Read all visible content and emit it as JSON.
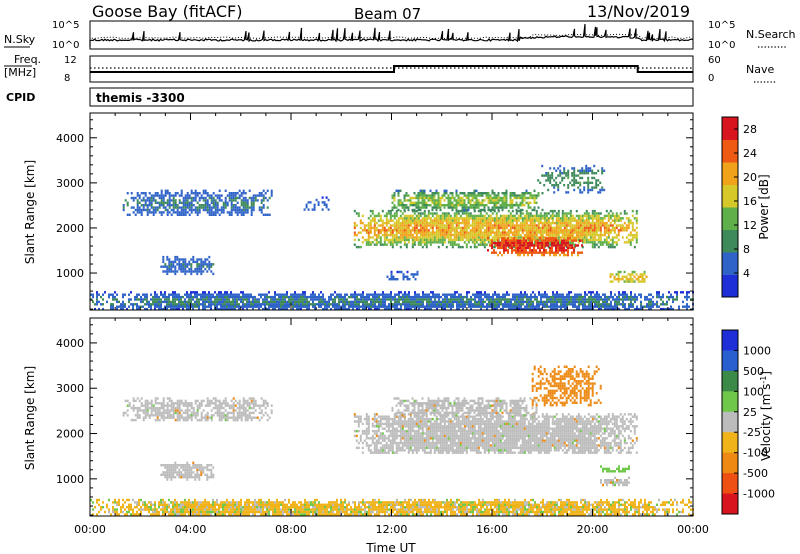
{
  "header": {
    "station": "Goose Bay (fitACF)",
    "beam": "Beam 07",
    "date": "13/Nov/2019"
  },
  "noise_panel": {
    "left_label": "N.Sky",
    "right_label": "N.Search",
    "left_ticks": [
      "10^5",
      "10^0"
    ],
    "right_ticks": [
      "10^5",
      "10^0"
    ]
  },
  "freq_panel": {
    "left_label_line1": "Freq.",
    "left_label_line2": "[MHz]",
    "right_label": "Nave",
    "left_ticks": [
      "12",
      "8"
    ],
    "right_ticks": [
      "60",
      "0"
    ]
  },
  "cpid": {
    "label": "CPID",
    "value": "themis -3300"
  },
  "colors": {
    "power": [
      "#1f2fd8",
      "#2f63c8",
      "#3f8a5a",
      "#5fb04a",
      "#d6c829",
      "#f0a21a",
      "#ee5a14",
      "#d8141e"
    ],
    "velocity": [
      "#1f2fd8",
      "#2a5fd0",
      "#3c8a48",
      "#6fc84a",
      "#bcbcbc",
      "#f0b41a",
      "#ee8a14",
      "#ee5014",
      "#d8141e"
    ],
    "ground_scatter": "#bcbcbc"
  },
  "chart_data": [
    {
      "type": "heatmap",
      "name": "power-panel",
      "ylabel": "Slant Range [km]",
      "xlabel": "",
      "x_ticks": [
        "00:00",
        "04:00",
        "08:00",
        "12:00",
        "16:00",
        "20:00",
        "00:00"
      ],
      "xlim_hours": [
        0,
        24
      ],
      "ylim_km": [
        180,
        4550
      ],
      "y_ticks": [
        1000,
        2000,
        3000,
        4000
      ],
      "colorbar": {
        "label": "Power [dB]",
        "ticks": [
          4,
          8,
          12,
          16,
          20,
          24,
          28
        ],
        "range": [
          0,
          30
        ]
      },
      "regions": [
        {
          "t0": 1.3,
          "t1": 7.2,
          "r0": 2280,
          "r1": 2850,
          "v0": 3,
          "v1": 9,
          "density": 0.75
        },
        {
          "t0": 2.8,
          "t1": 4.9,
          "r0": 1000,
          "r1": 1380,
          "v0": 3,
          "v1": 8,
          "density": 0.8
        },
        {
          "t0": 8.5,
          "t1": 9.5,
          "r0": 2400,
          "r1": 2700,
          "v0": 3,
          "v1": 6,
          "density": 0.4
        },
        {
          "t0": 10.5,
          "t1": 21.8,
          "r0": 1600,
          "r1": 2400,
          "v0": 6,
          "v1": 24,
          "density": 0.92
        },
        {
          "t0": 12.0,
          "t1": 18.0,
          "r0": 2400,
          "r1": 2850,
          "v0": 4,
          "v1": 18,
          "density": 0.78
        },
        {
          "t0": 17.8,
          "t1": 20.5,
          "r0": 2800,
          "r1": 3400,
          "v0": 3,
          "v1": 12,
          "density": 0.5
        },
        {
          "t0": 15.8,
          "t1": 19.6,
          "r0": 1400,
          "r1": 1850,
          "v0": 18,
          "v1": 30,
          "density": 0.8
        },
        {
          "t0": 20.6,
          "t1": 22.2,
          "r0": 800,
          "r1": 1050,
          "v0": 10,
          "v1": 22,
          "density": 0.7
        },
        {
          "t0": 11.8,
          "t1": 13.0,
          "r0": 850,
          "r1": 1050,
          "v0": 3,
          "v1": 6,
          "density": 0.5
        },
        {
          "t0": 0.0,
          "t1": 24.0,
          "r0": 190,
          "r1": 600,
          "v0": 1,
          "v1": 10,
          "density": 0.9
        }
      ]
    },
    {
      "type": "heatmap",
      "name": "velocity-panel",
      "ylabel": "Slant Range [km]",
      "xlabel": "Time UT",
      "x_ticks": [
        "00:00",
        "04:00",
        "08:00",
        "12:00",
        "16:00",
        "20:00",
        "00:00"
      ],
      "xlim_hours": [
        0,
        24
      ],
      "ylim_km": [
        180,
        4550
      ],
      "y_ticks": [
        1000,
        2000,
        3000,
        4000
      ],
      "colorbar": {
        "label": "Velocity [m s^-1]",
        "ticks": [
          1000,
          500,
          100,
          25,
          -25,
          -100,
          -500,
          -1000
        ]
      },
      "regions": [
        {
          "t0": 1.3,
          "t1": 7.2,
          "r0": 2280,
          "r1": 2800,
          "c": 4,
          "density": 0.7
        },
        {
          "t0": 2.8,
          "t1": 4.9,
          "r0": 1000,
          "r1": 1380,
          "c": 4,
          "density": 0.8
        },
        {
          "t0": 10.5,
          "t1": 21.8,
          "r0": 1550,
          "r1": 2450,
          "c": 4,
          "density": 0.93
        },
        {
          "t0": 12.0,
          "t1": 17.8,
          "r0": 2400,
          "r1": 2800,
          "c": 4,
          "density": 0.75
        },
        {
          "t0": 17.5,
          "t1": 20.3,
          "r0": 2600,
          "r1": 3500,
          "c": 6,
          "density": 0.55
        },
        {
          "t0": 20.3,
          "t1": 21.5,
          "r0": 1150,
          "r1": 1300,
          "c": 3,
          "density": 0.7
        },
        {
          "t0": 20.3,
          "t1": 21.5,
          "r0": 850,
          "r1": 1050,
          "c": 4,
          "density": 0.7
        },
        {
          "t0": 0.0,
          "t1": 24.0,
          "r0": 190,
          "r1": 560,
          "c": 5,
          "density": 0.92
        }
      ]
    }
  ]
}
